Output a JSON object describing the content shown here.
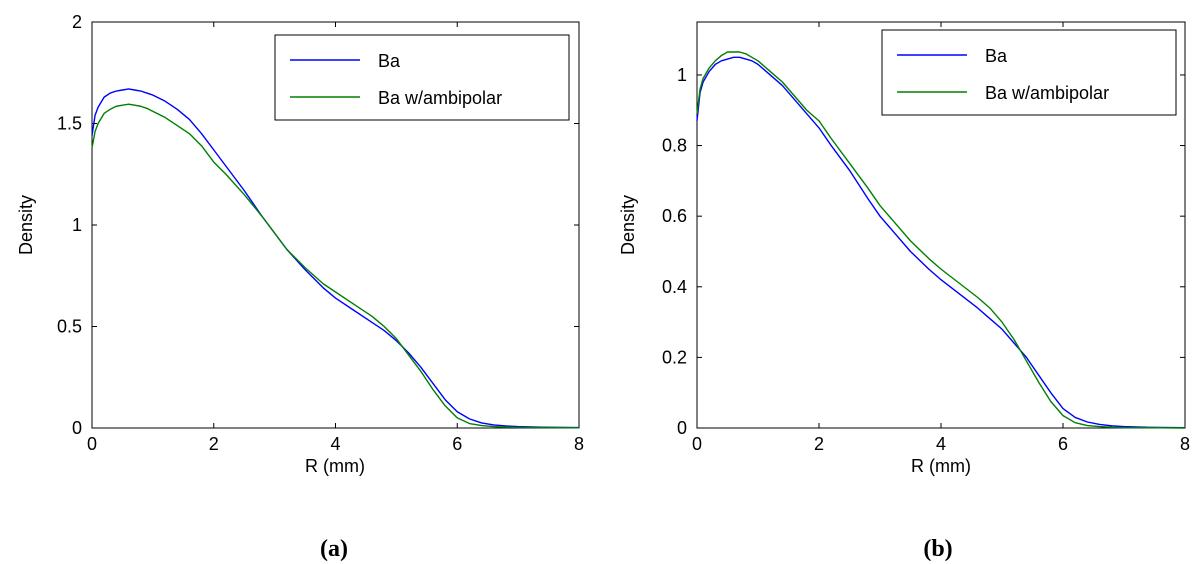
{
  "chart_data": [
    {
      "type": "line",
      "panel_label": "(a)",
      "xlabel": "R (mm)",
      "ylabel": "Density",
      "xlim": [
        0,
        8
      ],
      "ylim": [
        0,
        2
      ],
      "xticks": [
        0,
        2,
        4,
        6,
        8
      ],
      "yticks": [
        0,
        0.5,
        1,
        1.5,
        2
      ],
      "ytick_labels": [
        "0",
        "0.5",
        "1",
        "1.5",
        "2"
      ],
      "legend_position": "top-right",
      "grid": false,
      "series": [
        {
          "name": "Ba",
          "color": "#0000ff",
          "x": [
            0,
            0.05,
            0.1,
            0.2,
            0.3,
            0.4,
            0.5,
            0.6,
            0.7,
            0.8,
            0.9,
            1.0,
            1.2,
            1.4,
            1.6,
            1.8,
            2.0,
            2.2,
            2.5,
            2.8,
            3.0,
            3.2,
            3.5,
            3.8,
            4.0,
            4.3,
            4.6,
            4.8,
            5.0,
            5.1,
            5.2,
            5.4,
            5.6,
            5.8,
            6.0,
            6.2,
            6.4,
            6.6,
            6.8,
            7.0,
            7.4,
            8.0
          ],
          "y": [
            1.44,
            1.54,
            1.58,
            1.63,
            1.65,
            1.66,
            1.665,
            1.67,
            1.665,
            1.66,
            1.65,
            1.64,
            1.61,
            1.57,
            1.52,
            1.45,
            1.37,
            1.29,
            1.17,
            1.04,
            0.96,
            0.88,
            0.78,
            0.69,
            0.64,
            0.58,
            0.52,
            0.48,
            0.43,
            0.4,
            0.37,
            0.3,
            0.22,
            0.14,
            0.08,
            0.045,
            0.025,
            0.015,
            0.01,
            0.007,
            0.004,
            0.002
          ]
        },
        {
          "name": "Ba w/ambipolar",
          "color": "#008000",
          "x": [
            0,
            0.05,
            0.1,
            0.2,
            0.3,
            0.4,
            0.5,
            0.6,
            0.7,
            0.8,
            0.9,
            1.0,
            1.2,
            1.4,
            1.6,
            1.8,
            2.0,
            2.2,
            2.5,
            2.8,
            3.0,
            3.2,
            3.5,
            3.8,
            4.0,
            4.3,
            4.6,
            4.8,
            5.0,
            5.1,
            5.2,
            5.4,
            5.6,
            5.8,
            6.0,
            6.2,
            6.4,
            6.6,
            6.8,
            7.0,
            7.4,
            8.0
          ],
          "y": [
            1.38,
            1.46,
            1.5,
            1.55,
            1.57,
            1.585,
            1.59,
            1.595,
            1.59,
            1.585,
            1.575,
            1.56,
            1.53,
            1.49,
            1.45,
            1.39,
            1.31,
            1.25,
            1.15,
            1.04,
            0.96,
            0.88,
            0.79,
            0.71,
            0.67,
            0.61,
            0.55,
            0.5,
            0.44,
            0.4,
            0.36,
            0.28,
            0.19,
            0.11,
            0.05,
            0.022,
            0.012,
            0.007,
            0.004,
            0.003,
            0.002,
            0.001
          ]
        }
      ]
    },
    {
      "type": "line",
      "panel_label": "(b)",
      "xlabel": "R (mm)",
      "ylabel": "Density",
      "xlim": [
        0,
        8
      ],
      "ylim": [
        0,
        1.15
      ],
      "xticks": [
        0,
        2,
        4,
        6,
        8
      ],
      "yticks": [
        0,
        0.2,
        0.4,
        0.6,
        0.8,
        1
      ],
      "ytick_labels": [
        "0",
        "0.2",
        "0.4",
        "0.6",
        "0.8",
        "1"
      ],
      "legend_position": "top-right",
      "grid": false,
      "series": [
        {
          "name": "Ba",
          "color": "#0000ff",
          "x": [
            0,
            0.05,
            0.1,
            0.2,
            0.3,
            0.4,
            0.5,
            0.6,
            0.7,
            0.8,
            0.9,
            1.0,
            1.2,
            1.4,
            1.6,
            1.8,
            2.0,
            2.2,
            2.5,
            2.8,
            3.0,
            3.2,
            3.5,
            3.8,
            4.0,
            4.3,
            4.6,
            4.8,
            5.0,
            5.2,
            5.4,
            5.6,
            5.8,
            6.0,
            6.2,
            6.4,
            6.6,
            6.8,
            7.0,
            7.4,
            8.0
          ],
          "y": [
            0.87,
            0.95,
            0.98,
            1.01,
            1.03,
            1.04,
            1.045,
            1.05,
            1.05,
            1.045,
            1.04,
            1.03,
            1.0,
            0.97,
            0.93,
            0.89,
            0.85,
            0.8,
            0.73,
            0.65,
            0.6,
            0.56,
            0.5,
            0.45,
            0.42,
            0.38,
            0.34,
            0.31,
            0.28,
            0.24,
            0.2,
            0.15,
            0.1,
            0.055,
            0.03,
            0.017,
            0.01,
            0.006,
            0.004,
            0.002,
            0.001
          ]
        },
        {
          "name": "Ba w/ambipolar",
          "color": "#008000",
          "x": [
            0,
            0.05,
            0.1,
            0.2,
            0.3,
            0.4,
            0.5,
            0.6,
            0.7,
            0.8,
            0.9,
            1.0,
            1.2,
            1.4,
            1.6,
            1.8,
            2.0,
            2.2,
            2.5,
            2.8,
            3.0,
            3.2,
            3.5,
            3.8,
            4.0,
            4.3,
            4.6,
            4.8,
            5.0,
            5.2,
            5.4,
            5.6,
            5.8,
            6.0,
            6.2,
            6.4,
            6.6,
            6.8,
            7.0,
            7.4,
            8.0
          ],
          "y": [
            0.89,
            0.96,
            0.99,
            1.02,
            1.04,
            1.055,
            1.065,
            1.065,
            1.065,
            1.06,
            1.05,
            1.04,
            1.01,
            0.98,
            0.94,
            0.9,
            0.87,
            0.82,
            0.75,
            0.68,
            0.63,
            0.59,
            0.53,
            0.48,
            0.45,
            0.41,
            0.37,
            0.34,
            0.3,
            0.25,
            0.19,
            0.13,
            0.075,
            0.035,
            0.015,
            0.007,
            0.004,
            0.002,
            0.001,
            0.001,
            0.0
          ]
        }
      ]
    }
  ]
}
